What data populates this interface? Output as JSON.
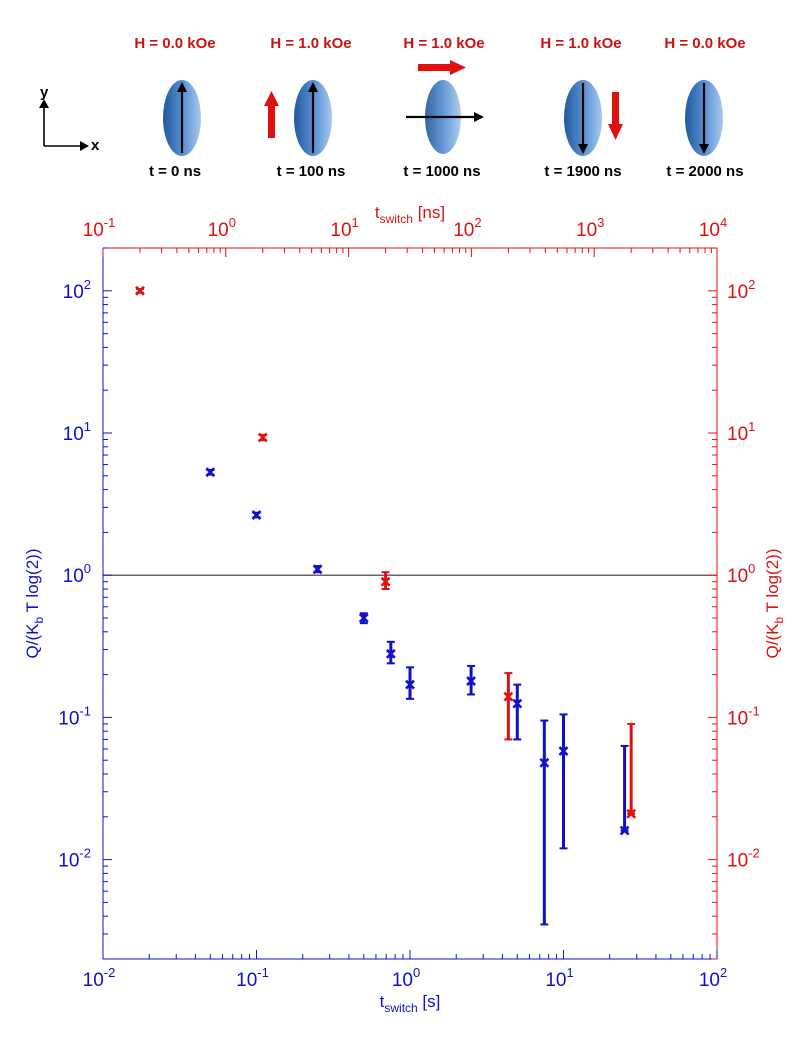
{
  "panel": {
    "axis_y": "y",
    "axis_x": "x",
    "states": [
      {
        "field": "H = 0.0 kOe",
        "time": "t = 0 ns"
      },
      {
        "field": "H = 1.0 kOe",
        "time": "t = 100 ns"
      },
      {
        "field": "H = 1.0 kOe",
        "time": "t = 1000 ns"
      },
      {
        "field": "H = 1.0 kOe",
        "time": "t = 1900 ns"
      },
      {
        "field": "H = 0.0 kOe",
        "time": "t = 2000 ns"
      }
    ]
  },
  "colors": {
    "blue": "#1010c8",
    "red": "#e01010",
    "field_label": "#cc1111",
    "ref_line": "#333333"
  },
  "chart_data": {
    "type": "scatter",
    "reference_line_y": 1,
    "axes": {
      "bottom": {
        "label_main": "t",
        "label_sub": "switch",
        "label_unit": " [s]",
        "range": [
          0.01,
          100
        ],
        "scale": "log",
        "ticks": [
          {
            "base": "10",
            "exp": "-2"
          },
          {
            "base": "10",
            "exp": "-1"
          },
          {
            "base": "10",
            "exp": "0"
          },
          {
            "base": "10",
            "exp": "1"
          },
          {
            "base": "10",
            "exp": "2"
          }
        ]
      },
      "top": {
        "label_main": "t",
        "label_sub": "switch",
        "label_unit": " [ns]",
        "range": [
          0.1,
          10000
        ],
        "scale": "log",
        "ticks": [
          {
            "base": "10",
            "exp": "-1"
          },
          {
            "base": "10",
            "exp": "0"
          },
          {
            "base": "10",
            "exp": "1"
          },
          {
            "base": "10",
            "exp": "2"
          },
          {
            "base": "10",
            "exp": "3"
          },
          {
            "base": "10",
            "exp": "4"
          }
        ]
      },
      "left": {
        "label_pre": "Q/(K",
        "label_sub": "b",
        "label_post": " T log(2))",
        "range": [
          0.002,
          200
        ],
        "scale": "log",
        "ticks": [
          {
            "base": "10",
            "exp": "-2"
          },
          {
            "base": "10",
            "exp": "-1"
          },
          {
            "base": "10",
            "exp": "0"
          },
          {
            "base": "10",
            "exp": "1"
          },
          {
            "base": "10",
            "exp": "2"
          }
        ]
      },
      "right": {
        "label_pre": "Q/(K",
        "label_sub": "b",
        "label_post": " T log(2))",
        "range": [
          0.002,
          200
        ],
        "scale": "log",
        "ticks": [
          {
            "base": "10",
            "exp": "-2"
          },
          {
            "base": "10",
            "exp": "-1"
          },
          {
            "base": "10",
            "exp": "0"
          },
          {
            "base": "10",
            "exp": "1"
          },
          {
            "base": "10",
            "exp": "2"
          }
        ]
      }
    },
    "series": [
      {
        "name": "t_switch [s]",
        "color": "#1010c8",
        "x_axis": "bottom",
        "points": [
          {
            "x": 0.05,
            "y": 5.3,
            "lo": 5.1,
            "hi": 5.5
          },
          {
            "x": 0.1,
            "y": 2.65,
            "lo": 2.55,
            "hi": 2.75
          },
          {
            "x": 0.25,
            "y": 1.1,
            "lo": 1.05,
            "hi": 1.16
          },
          {
            "x": 0.5,
            "y": 0.5,
            "lo": 0.46,
            "hi": 0.54
          },
          {
            "x": 0.75,
            "y": 0.28,
            "lo": 0.24,
            "hi": 0.34
          },
          {
            "x": 1.0,
            "y": 0.17,
            "lo": 0.135,
            "hi": 0.225
          },
          {
            "x": 2.5,
            "y": 0.18,
            "lo": 0.145,
            "hi": 0.23
          },
          {
            "x": 5.0,
            "y": 0.125,
            "lo": 0.07,
            "hi": 0.17
          },
          {
            "x": 7.5,
            "y": 0.048,
            "lo": 0.0035,
            "hi": 0.095
          },
          {
            "x": 10.0,
            "y": 0.058,
            "lo": 0.012,
            "hi": 0.105
          },
          {
            "x": 25.0,
            "y": 0.016,
            "lo": 0.016,
            "hi": 0.063
          }
        ]
      },
      {
        "name": "t_switch [ns]",
        "color": "#e01010",
        "x_axis": "top",
        "points": [
          {
            "x": 0.2,
            "y": 100,
            "lo": 97,
            "hi": 103
          },
          {
            "x": 2.0,
            "y": 9.3,
            "lo": 8.9,
            "hi": 9.7
          },
          {
            "x": 20.0,
            "y": 0.9,
            "lo": 0.8,
            "hi": 1.05
          },
          {
            "x": 200.0,
            "y": 0.14,
            "lo": 0.07,
            "hi": 0.205
          },
          {
            "x": 2000.0,
            "y": 0.021,
            "lo": 0.021,
            "hi": 0.09
          }
        ]
      }
    ]
  }
}
